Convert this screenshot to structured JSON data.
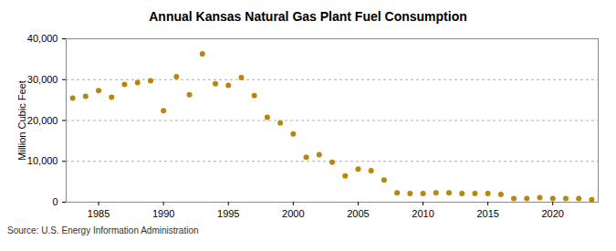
{
  "chart_data": {
    "type": "scatter",
    "title": "Annual Kansas Natural Gas Plant Fuel Consumption",
    "y_label": "Million Cubic Feet",
    "source": "Source: U.S. Energy Information Administration",
    "x": [
      1983,
      1984,
      1985,
      1986,
      1987,
      1988,
      1989,
      1990,
      1991,
      1992,
      1993,
      1994,
      1995,
      1996,
      1997,
      1998,
      1999,
      2000,
      2001,
      2002,
      2003,
      2004,
      2005,
      2006,
      2007,
      2008,
      2009,
      2010,
      2011,
      2012,
      2013,
      2014,
      2015,
      2016,
      2017,
      2018,
      2019,
      2020,
      2021,
      2022,
      2023
    ],
    "values": [
      25500,
      25900,
      27300,
      25700,
      28800,
      29300,
      29700,
      22400,
      30700,
      26300,
      36300,
      29000,
      28600,
      30500,
      26100,
      20800,
      19400,
      16700,
      11000,
      11600,
      9800,
      6400,
      8100,
      7700,
      5400,
      2300,
      2100,
      2100,
      2300,
      2300,
      2100,
      2100,
      2100,
      1900,
      900,
      900,
      1100,
      900,
      900,
      900,
      600
    ],
    "color": "#b8860b",
    "marker": "circle",
    "xlim": [
      1982.5,
      2023.5
    ],
    "xticks": [
      1985,
      1990,
      1995,
      2000,
      2005,
      2010,
      2015,
      2020
    ],
    "ylim": [
      0,
      40000
    ],
    "yticks": [
      0,
      {
        "value": 10000,
        "label": "10,000"
      },
      {
        "value": 20000,
        "label": "20,000"
      },
      {
        "value": 30000,
        "label": "30,000"
      },
      {
        "value": 40000,
        "label": "40,000"
      }
    ],
    "grid": true
  }
}
